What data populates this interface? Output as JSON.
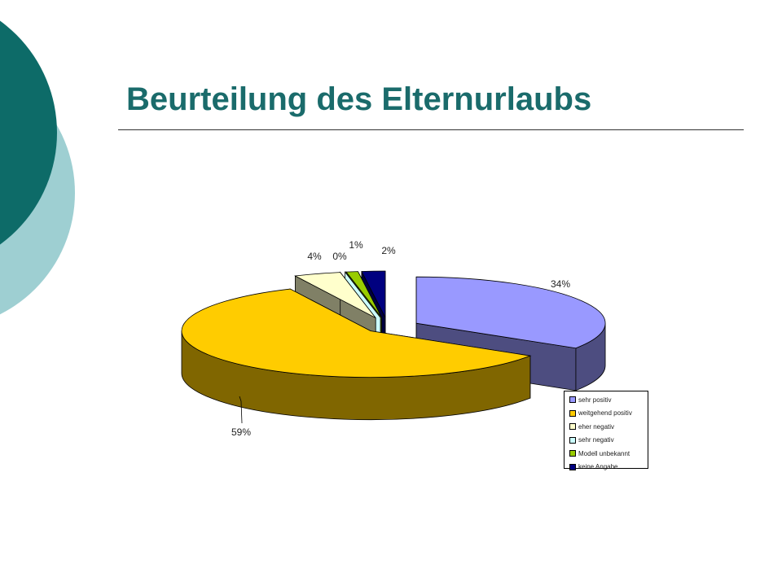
{
  "slide": {
    "title": "Beurteilung des Elternurlaubs",
    "colors": {
      "title": "#1a6b6b",
      "circle_dark": "#0d6b68",
      "circle_light": "#9ecfd2"
    }
  },
  "chart_data": {
    "type": "pie",
    "style": "3d-exploded",
    "title": "",
    "legend_position": "bottom-right",
    "categories": [
      "sehr positiv",
      "weitgehend positiv",
      "eher negativ",
      "sehr negativ",
      "Modell unbekannt",
      "keine Angabe"
    ],
    "values": [
      34,
      59,
      4,
      0,
      1,
      2
    ],
    "labels": [
      "34%",
      "59%",
      "4%",
      "0%",
      "1%",
      "2%"
    ],
    "colors": [
      "#9999ff",
      "#ffcc00",
      "#ffffcc",
      "#ccffff",
      "#99cc00",
      "#000080"
    ],
    "side_colors": [
      "#4d4d80",
      "#806600",
      "#808066",
      "#668080",
      "#4d6600",
      "#000040"
    ]
  }
}
